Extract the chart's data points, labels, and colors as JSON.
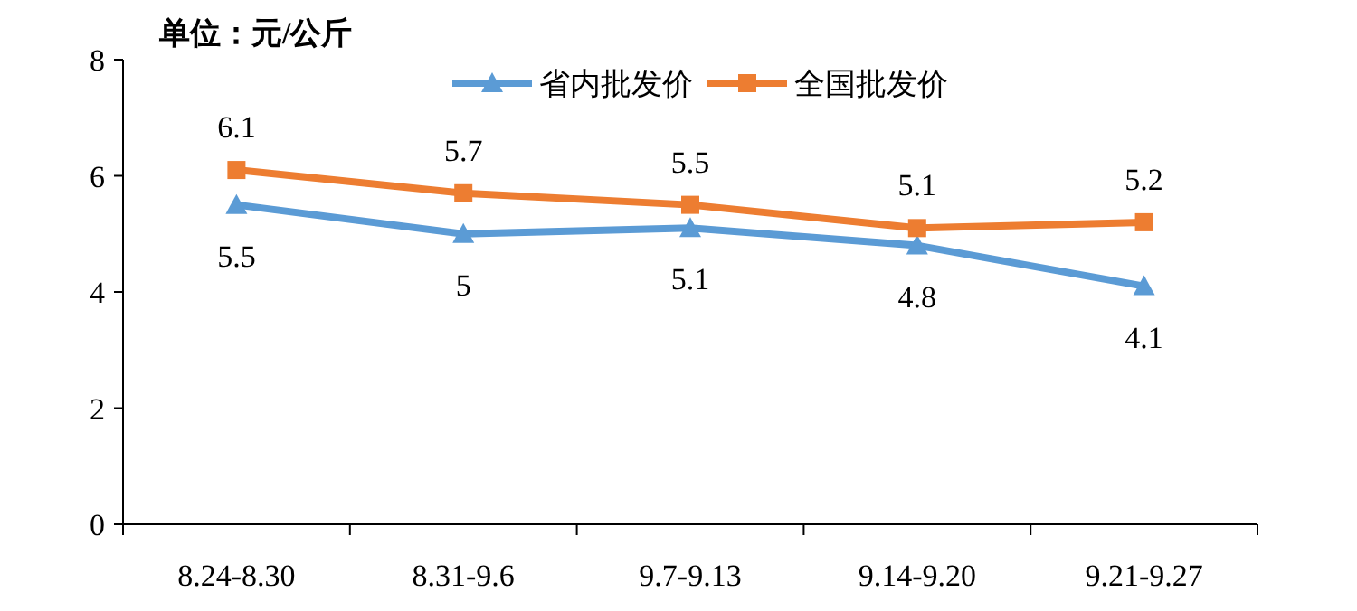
{
  "chart_data": {
    "type": "line",
    "annotations": [
      "单位：元/公斤"
    ],
    "categories": [
      "8.24-8.30",
      "8.31-9.6",
      "9.7-9.13",
      "9.14-9.20",
      "9.21-9.27"
    ],
    "series": [
      {
        "name": "省内批发价",
        "color": "#5b9bd5",
        "marker": "triangle",
        "values": [
          5.5,
          5,
          5.1,
          4.8,
          4.1
        ]
      },
      {
        "name": "全国批发价",
        "color": "#ed7d31",
        "marker": "square",
        "values": [
          6.1,
          5.7,
          5.5,
          5.1,
          5.2
        ]
      }
    ],
    "ylim": [
      0,
      8
    ],
    "yticks": [
      0,
      2,
      4,
      6,
      8
    ],
    "data_labels": true,
    "legend": "top",
    "grid": false,
    "line_style": "solid"
  }
}
